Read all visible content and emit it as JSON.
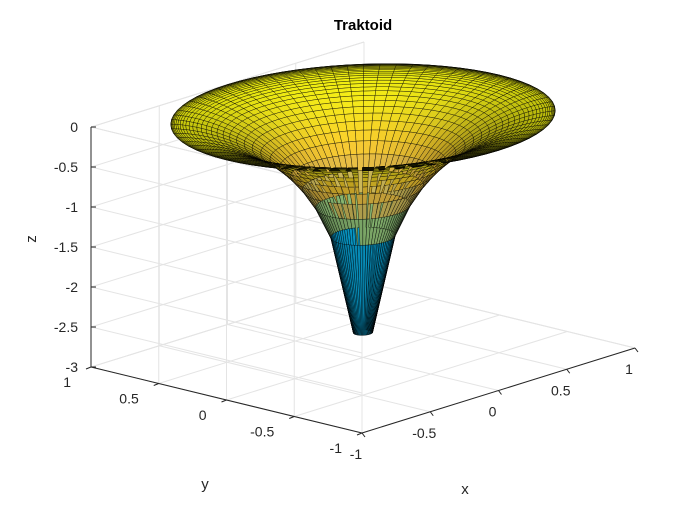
{
  "chart_data": {
    "type": "surface",
    "title": "Traktoid",
    "xlabel": "x",
    "ylabel": "y",
    "zlabel": "z",
    "surface": "tractoid (pseudosphere)",
    "param": {
      "u_range": [
        0.05,
        1.5708
      ],
      "v_range": [
        0,
        6.2832
      ],
      "x": "sin(u)*cos(v)",
      "y": "sin(u)*sin(v)",
      "z": "cos(u)+log(tan(u/2))"
    },
    "mesh": {
      "nu": 30,
      "nv": 72
    },
    "xlim": [
      -1,
      1
    ],
    "ylim": [
      -1,
      1
    ],
    "zlim": [
      -3,
      0
    ],
    "xticks": [
      -1,
      -0.5,
      0,
      0.5,
      1
    ],
    "yticks": [
      -1,
      -0.5,
      0,
      0.5,
      1
    ],
    "zticks": [
      -3,
      -2.5,
      -2,
      -1.5,
      -1,
      -0.5,
      0
    ],
    "colormap": "parula",
    "edge_color": "#000000",
    "grid": true,
    "box": true
  }
}
